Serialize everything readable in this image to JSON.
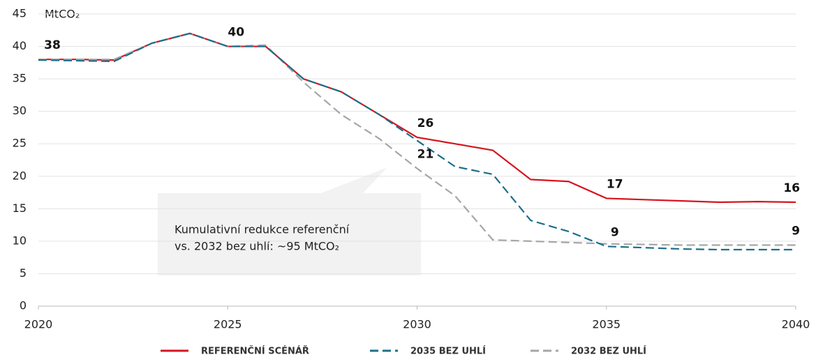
{
  "chart_data": {
    "type": "line",
    "y_label": "MtCO₂",
    "x": [
      2020,
      2021,
      2022,
      2023,
      2024,
      2025,
      2026,
      2027,
      2028,
      2029,
      2030,
      2031,
      2032,
      2033,
      2034,
      2035,
      2036,
      2037,
      2038,
      2039,
      2040
    ],
    "xlim": [
      2020,
      2040
    ],
    "xticks": [
      2020,
      2025,
      2030,
      2035,
      2040
    ],
    "ylim": [
      0,
      45
    ],
    "yticks": [
      0,
      5,
      10,
      15,
      20,
      25,
      30,
      35,
      40,
      45
    ],
    "grid": true,
    "legend": "bottom",
    "annotation": [
      "Kumulativní redukce referenční",
      "vs. 2032 bez uhlí: ~95 MtCO₂"
    ],
    "series": [
      {
        "name": "REFERENČNÍ SCÉNÁŘ",
        "color": "#d7141e",
        "dash": "solid",
        "values": [
          38,
          38,
          37.9,
          40.5,
          42,
          40,
          40,
          35,
          33,
          29.5,
          26,
          25,
          24,
          19.5,
          19.2,
          16.6,
          16.4,
          16.2,
          16,
          16.1,
          16
        ],
        "value_labels": [
          "38",
          null,
          null,
          null,
          null,
          "40",
          null,
          null,
          null,
          null,
          "26",
          null,
          null,
          null,
          null,
          "17",
          null,
          null,
          null,
          null,
          "16"
        ]
      },
      {
        "name": "2035 BEZ UHLÍ",
        "color": "#1b6f8a",
        "dash": "dashed",
        "values": [
          37.9,
          37.8,
          37.7,
          40.5,
          42,
          40,
          40,
          35,
          33,
          29.5,
          25.5,
          21.5,
          20.3,
          13.2,
          11.5,
          9.2,
          9,
          8.8,
          8.7,
          8.7,
          8.7
        ],
        "value_labels": [
          null,
          null,
          null,
          null,
          null,
          null,
          null,
          null,
          null,
          null,
          null,
          null,
          null,
          null,
          null,
          "9",
          null,
          null,
          null,
          null,
          null
        ]
      },
      {
        "name": "2032 BEZ UHLÍ",
        "color": "#a6a6a6",
        "dash": "dashed",
        "values": [
          38,
          38,
          38,
          40.5,
          42,
          40,
          40.2,
          34.5,
          29.5,
          25.8,
          21.2,
          17,
          10.2,
          10,
          9.8,
          9.6,
          9.5,
          9.4,
          9.4,
          9.4,
          9.4
        ],
        "value_labels": [
          null,
          null,
          null,
          null,
          null,
          null,
          null,
          null,
          null,
          null,
          "21",
          null,
          null,
          null,
          null,
          null,
          null,
          null,
          null,
          null,
          "9"
        ]
      }
    ]
  }
}
